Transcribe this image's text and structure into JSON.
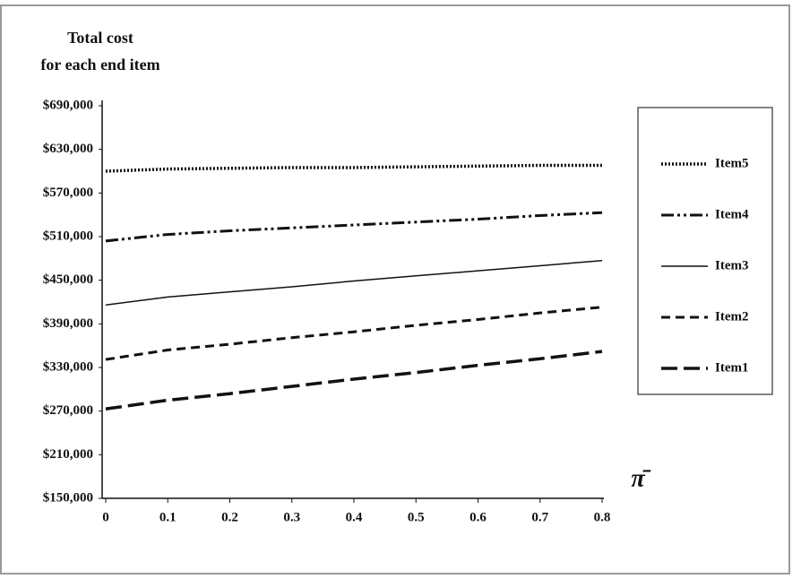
{
  "chart_data": {
    "type": "line",
    "ylabel": [
      "Total cost",
      "for each end item"
    ],
    "xlabel": "π̄",
    "x": [
      0,
      0.1,
      0.2,
      0.3,
      0.4,
      0.5,
      0.6,
      0.7,
      0.8
    ],
    "xlim": [
      0,
      0.8
    ],
    "xticks": [
      0,
      0.1,
      0.2,
      0.3,
      0.4,
      0.5,
      0.6,
      0.7,
      0.8
    ],
    "ylim": [
      150000,
      690000
    ],
    "yticks": [
      {
        "value": 150000,
        "label": "$150,000"
      },
      {
        "value": 210000,
        "label": "$210,000"
      },
      {
        "value": 270000,
        "label": "$270,000"
      },
      {
        "value": 330000,
        "label": "$330,000"
      },
      {
        "value": 390000,
        "label": "$390,000"
      },
      {
        "value": 450000,
        "label": "$450,000"
      },
      {
        "value": 510000,
        "label": "$510,000"
      },
      {
        "value": 570000,
        "label": "$570,000"
      },
      {
        "value": 630000,
        "label": "$630,000"
      },
      {
        "value": 690000,
        "label": "$690,000"
      }
    ],
    "grid": false,
    "legend": "right",
    "series": [
      {
        "name": "Item5",
        "color": "#111111",
        "dash": "dotted",
        "values": [
          600000,
          603000,
          604000,
          605000,
          605000,
          606000,
          607000,
          608000,
          608000
        ]
      },
      {
        "name": "Item4",
        "color": "#111111",
        "dash": "dash-dot-dot",
        "values": [
          504000,
          513000,
          518000,
          522000,
          526000,
          530000,
          534000,
          539000,
          543000
        ]
      },
      {
        "name": "Item3",
        "color": "#111111",
        "dash": "solid",
        "values": [
          416000,
          427000,
          434000,
          441000,
          449000,
          456000,
          463000,
          470000,
          477000
        ]
      },
      {
        "name": "Item2",
        "color": "#111111",
        "dash": "dashed",
        "values": [
          341000,
          354000,
          362000,
          371000,
          379000,
          388000,
          396000,
          405000,
          413000
        ]
      },
      {
        "name": "Item1",
        "color": "#111111",
        "dash": "long-dash",
        "values": [
          273000,
          285000,
          294000,
          304000,
          314000,
          323000,
          333000,
          342000,
          352000
        ]
      }
    ]
  }
}
